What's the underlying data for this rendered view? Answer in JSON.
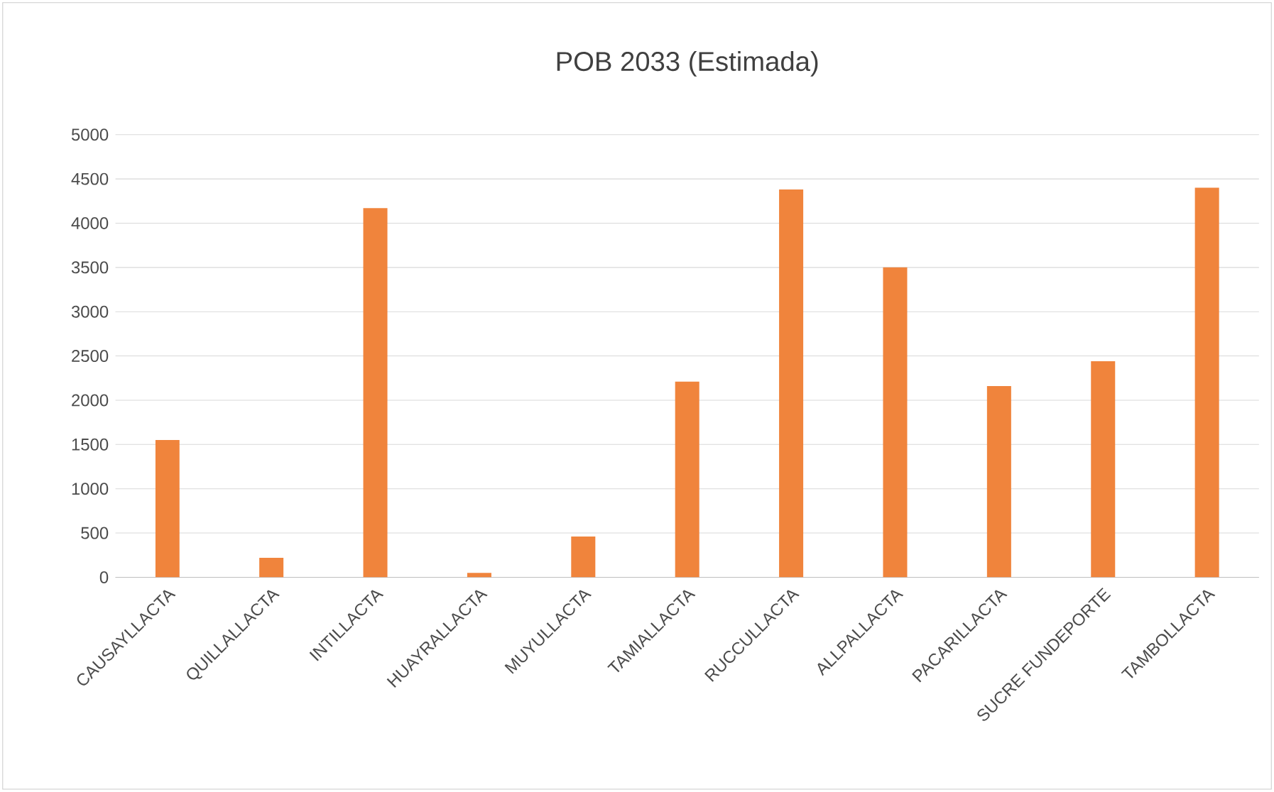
{
  "chart_data": {
    "type": "bar",
    "title": "POB 2033 (Estimada)",
    "categories": [
      "CAUSAYLLACTA",
      "QUILLALLACTA",
      "INTILLACTA",
      "HUAYRALLACTA",
      "MUYULLACTA",
      "TAMIALLACTA",
      "RUCCULLACTA",
      "ALLPALLACTA",
      "PACARILLACTA",
      "SUCRE FUNDEPORTE",
      "TAMBOLLACTA"
    ],
    "values": [
      1550,
      220,
      4170,
      50,
      460,
      2210,
      4380,
      3500,
      2160,
      2440,
      4400
    ],
    "color": "#f0843c",
    "ylim": [
      0,
      5000
    ],
    "yticks": [
      0,
      500,
      1000,
      1500,
      2000,
      2500,
      3000,
      3500,
      4000,
      4500,
      5000
    ],
    "grid": "y"
  }
}
